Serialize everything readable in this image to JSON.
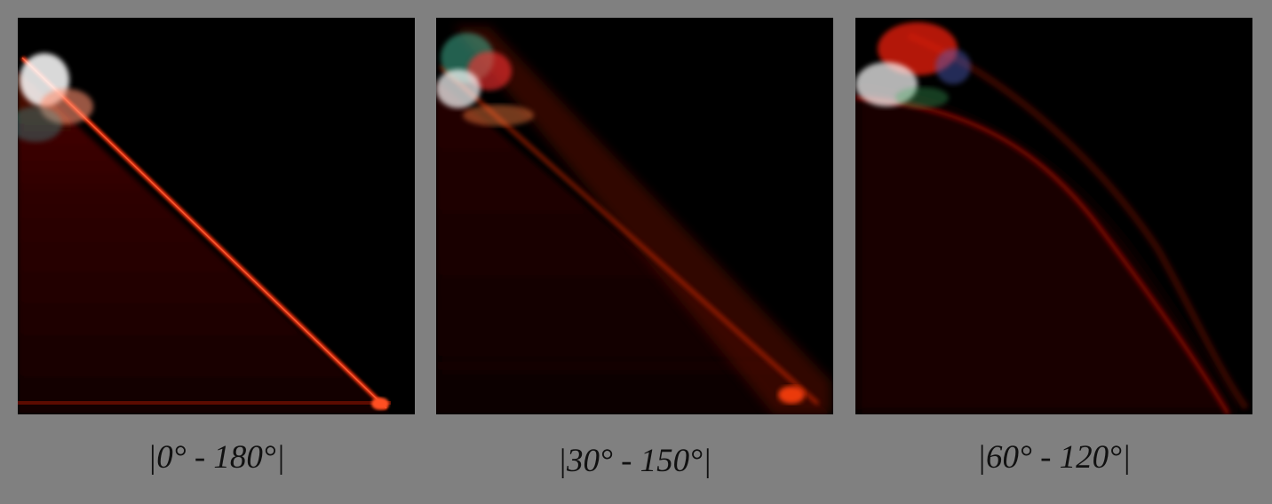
{
  "panels": [
    {
      "caption": "|0° - 180°|"
    },
    {
      "caption": "|30° - 150°|"
    },
    {
      "caption": "|60° - 120°|"
    }
  ],
  "colors": {
    "background": "#808080",
    "panel_background": "#000000",
    "signal_primary": "#ff2a10",
    "signal_highlight": "#ffffff"
  }
}
